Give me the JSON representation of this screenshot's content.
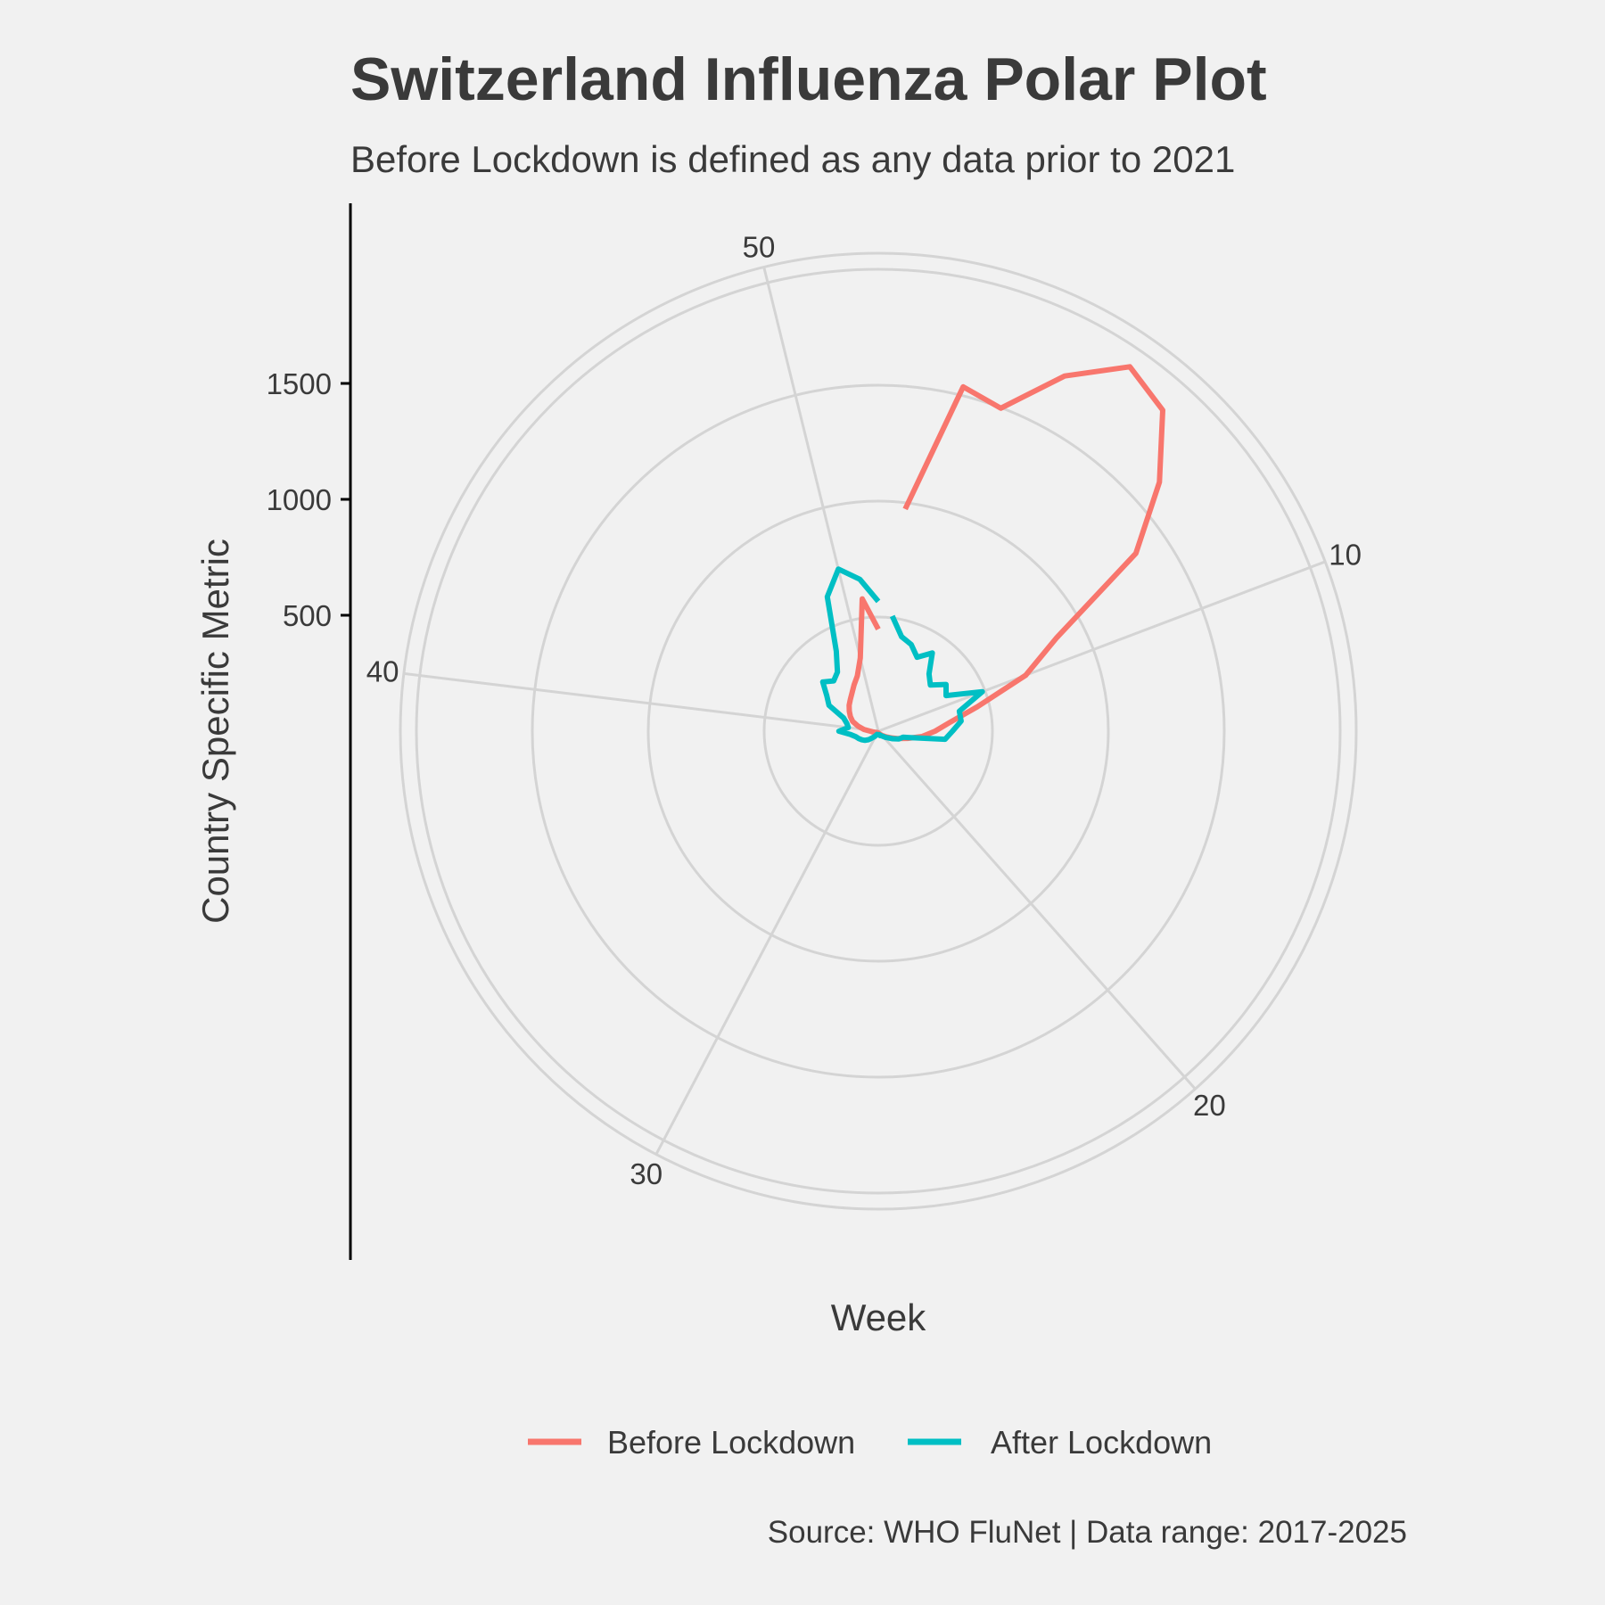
{
  "chart_data": {
    "type": "line",
    "coordinate_system": "polar",
    "title": "Switzerland Influenza Polar Plot",
    "subtitle": "Before Lockdown is defined as any data prior to 2021",
    "xlabel": "Week",
    "ylabel": "Country Specific Metric",
    "caption": "Source: WHO FluNet | Data range: 2017-2025",
    "angular_ticks": [
      "10",
      "20",
      "30",
      "40",
      "50"
    ],
    "angular_tick_values": [
      10,
      20,
      30,
      40,
      50
    ],
    "radial_ticks": [
      "500",
      "1000",
      "1500"
    ],
    "radial_tick_values": [
      500,
      1000,
      1500
    ],
    "grid": true,
    "legend_position": "bottom",
    "series": [
      {
        "name": "Before Lockdown",
        "color": "#f8766d",
        "x": [
          1,
          2,
          3,
          4,
          5,
          6,
          7,
          8,
          9,
          10,
          11,
          12,
          13,
          14,
          15,
          16,
          17,
          18,
          19,
          20,
          21,
          22,
          23,
          24,
          25,
          26,
          27,
          28,
          29,
          30,
          31,
          32,
          33,
          34,
          35,
          36,
          37,
          38,
          39,
          40,
          41,
          42,
          43,
          44,
          45,
          46,
          47,
          48,
          49,
          50,
          51,
          52
        ],
        "values": [
          965,
          1530,
          1490,
          1730,
          1910,
          1850,
          1620,
          1350,
          870,
          680,
          440,
          310,
          245,
          190,
          130,
          90,
          62,
          45,
          32,
          24,
          18,
          14,
          12,
          10,
          9,
          8,
          7,
          7,
          7,
          7,
          7,
          8,
          8,
          10,
          12,
          15,
          18,
          24,
          35,
          62,
          90,
          118,
          136,
          152,
          168,
          182,
          200,
          225,
          255,
          325,
          575,
          440
        ]
      },
      {
        "name": "After Lockdown",
        "color": "#00bfc4",
        "x": [
          1,
          2,
          3,
          4,
          5,
          6,
          7,
          8,
          9,
          10,
          11,
          12,
          13,
          14,
          15,
          16,
          17,
          18,
          19,
          20,
          21,
          22,
          23,
          24,
          25,
          26,
          27,
          28,
          29,
          30,
          31,
          32,
          33,
          34,
          35,
          36,
          37,
          38,
          39,
          40,
          41,
          42,
          43,
          44,
          45,
          46,
          47,
          48,
          49,
          50,
          51,
          52
        ],
        "values": [
          500,
          420,
          400,
          360,
          410,
          330,
          300,
          355,
          330,
          480,
          360,
          360,
          320,
          290,
          110,
          95,
          70,
          50,
          40,
          30,
          25,
          20,
          20,
          15,
          15,
          15,
          15,
          15,
          15,
          20,
          28,
          38,
          55,
          70,
          80,
          90,
          100,
          120,
          170,
          130,
          140,
          160,
          240,
          270,
          320,
          290,
          310,
          390,
          620,
          720,
          660,
          560
        ]
      }
    ]
  }
}
